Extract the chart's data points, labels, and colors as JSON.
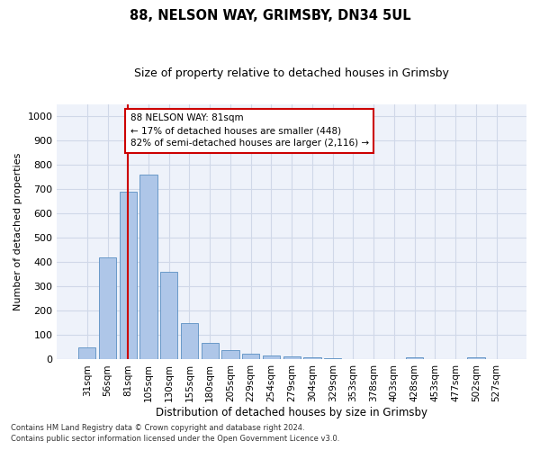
{
  "title1": "88, NELSON WAY, GRIMSBY, DN34 5UL",
  "title2": "Size of property relative to detached houses in Grimsby",
  "xlabel": "Distribution of detached houses by size in Grimsby",
  "ylabel": "Number of detached properties",
  "categories": [
    "31sqm",
    "56sqm",
    "81sqm",
    "105sqm",
    "130sqm",
    "155sqm",
    "180sqm",
    "205sqm",
    "229sqm",
    "254sqm",
    "279sqm",
    "304sqm",
    "329sqm",
    "353sqm",
    "378sqm",
    "403sqm",
    "428sqm",
    "453sqm",
    "477sqm",
    "502sqm",
    "527sqm"
  ],
  "values": [
    50,
    420,
    690,
    760,
    360,
    150,
    70,
    37,
    25,
    18,
    13,
    9,
    5,
    2,
    1,
    0,
    8,
    0,
    0,
    10,
    0
  ],
  "bar_color": "#aec6e8",
  "bar_edge_color": "#5a8fc2",
  "vline_x": 2,
  "vline_color": "#cc0000",
  "annotation_line1": "88 NELSON WAY: 81sqm",
  "annotation_line2": "← 17% of detached houses are smaller (448)",
  "annotation_line3": "82% of semi-detached houses are larger (2,116) →",
  "annotation_box_color": "#ffffff",
  "annotation_box_edge": "#cc0000",
  "ylim": [
    0,
    1050
  ],
  "yticks": [
    0,
    100,
    200,
    300,
    400,
    500,
    600,
    700,
    800,
    900,
    1000
  ],
  "footnote1": "Contains HM Land Registry data © Crown copyright and database right 2024.",
  "footnote2": "Contains public sector information licensed under the Open Government Licence v3.0.",
  "grid_color": "#d0d8e8",
  "bg_color": "#eef2fa"
}
